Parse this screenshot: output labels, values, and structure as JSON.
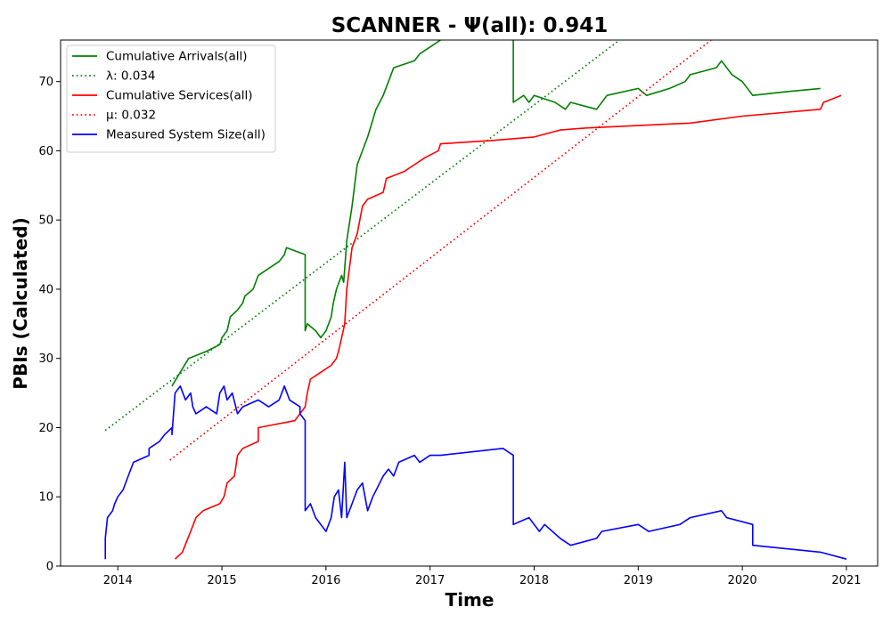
{
  "chart_data": {
    "type": "line",
    "title": "SCANNER -  Ψ(all): 0.941",
    "xlabel": "Time",
    "ylabel": "PBIs (Calculated)",
    "xlim": [
      2013.45,
      2021.3
    ],
    "ylim": [
      0,
      76
    ],
    "x_ticks": [
      2014,
      2015,
      2016,
      2017,
      2018,
      2019,
      2020,
      2021
    ],
    "y_ticks": [
      0,
      10,
      20,
      30,
      40,
      50,
      60,
      70
    ],
    "grid": false,
    "legend_position": "top-left",
    "series": [
      {
        "name": "Cumulative Arrivals(all)",
        "color": "#008000",
        "style": "solid",
        "points": [
          [
            2014.52,
            26
          ],
          [
            2014.6,
            28
          ],
          [
            2014.68,
            30
          ],
          [
            2014.85,
            31
          ],
          [
            2014.98,
            32
          ],
          [
            2015.0,
            33
          ],
          [
            2015.05,
            34
          ],
          [
            2015.08,
            36
          ],
          [
            2015.15,
            37
          ],
          [
            2015.2,
            38
          ],
          [
            2015.22,
            39
          ],
          [
            2015.3,
            40
          ],
          [
            2015.35,
            42
          ],
          [
            2015.45,
            43
          ],
          [
            2015.55,
            44
          ],
          [
            2015.6,
            45
          ],
          [
            2015.62,
            46
          ],
          [
            2015.8,
            45
          ],
          [
            2015.8,
            34
          ],
          [
            2015.82,
            35
          ],
          [
            2015.9,
            34
          ],
          [
            2015.95,
            33
          ],
          [
            2016.0,
            34
          ],
          [
            2016.05,
            36
          ],
          [
            2016.07,
            38
          ],
          [
            2016.1,
            40
          ],
          [
            2016.15,
            42
          ],
          [
            2016.17,
            41
          ],
          [
            2016.2,
            47
          ],
          [
            2016.25,
            52
          ],
          [
            2016.3,
            58
          ],
          [
            2016.35,
            60
          ],
          [
            2016.4,
            62
          ],
          [
            2016.48,
            66
          ],
          [
            2016.55,
            68
          ],
          [
            2016.6,
            70
          ],
          [
            2016.65,
            72
          ],
          [
            2016.85,
            73
          ],
          [
            2016.9,
            74
          ],
          [
            2017.0,
            75
          ],
          [
            2017.1,
            76
          ]
        ]
      },
      {
        "name": "Cumulative Arrivals(all) (cont.)",
        "color": "#008000",
        "style": "solid",
        "points": [
          [
            2017.8,
            76
          ],
          [
            2017.8,
            67
          ],
          [
            2017.9,
            68
          ],
          [
            2017.95,
            67
          ],
          [
            2018.0,
            68
          ],
          [
            2018.2,
            67
          ],
          [
            2018.3,
            66
          ],
          [
            2018.35,
            67
          ],
          [
            2018.6,
            66
          ],
          [
            2018.65,
            67
          ],
          [
            2018.7,
            68
          ],
          [
            2019.0,
            69
          ],
          [
            2019.08,
            68
          ],
          [
            2019.3,
            69
          ],
          [
            2019.45,
            70
          ],
          [
            2019.5,
            71
          ],
          [
            2019.75,
            72
          ],
          [
            2019.8,
            73
          ],
          [
            2019.85,
            72
          ],
          [
            2019.9,
            71
          ],
          [
            2020.0,
            70
          ],
          [
            2020.1,
            68
          ],
          [
            2020.4,
            68.5
          ],
          [
            2020.75,
            69
          ]
        ]
      },
      {
        "name": "λ: 0.034",
        "color": "#008000",
        "style": "dotted",
        "points": [
          [
            2013.88,
            19.6
          ],
          [
            2018.82,
            76
          ]
        ]
      },
      {
        "name": "Cumulative Services(all)",
        "color": "#ff0000",
        "style": "solid",
        "points": [
          [
            2014.55,
            1
          ],
          [
            2014.62,
            2
          ],
          [
            2014.7,
            5
          ],
          [
            2014.75,
            7
          ],
          [
            2014.82,
            8
          ],
          [
            2014.98,
            9
          ],
          [
            2015.02,
            10
          ],
          [
            2015.05,
            12
          ],
          [
            2015.12,
            13
          ],
          [
            2015.15,
            16
          ],
          [
            2015.2,
            17
          ],
          [
            2015.35,
            18
          ],
          [
            2015.35,
            20
          ],
          [
            2015.7,
            21
          ],
          [
            2015.75,
            22
          ],
          [
            2015.8,
            23
          ],
          [
            2015.82,
            25
          ],
          [
            2015.85,
            27
          ],
          [
            2015.95,
            28
          ],
          [
            2016.05,
            29
          ],
          [
            2016.1,
            30
          ],
          [
            2016.12,
            31
          ],
          [
            2016.15,
            33
          ],
          [
            2016.18,
            35
          ],
          [
            2016.2,
            40
          ],
          [
            2016.25,
            46
          ],
          [
            2016.3,
            48
          ],
          [
            2016.35,
            52
          ],
          [
            2016.4,
            53
          ],
          [
            2016.55,
            54
          ],
          [
            2016.58,
            56
          ],
          [
            2016.75,
            57
          ],
          [
            2016.85,
            58
          ],
          [
            2016.95,
            59
          ],
          [
            2017.08,
            60
          ],
          [
            2017.1,
            61
          ],
          [
            2017.6,
            61.5
          ],
          [
            2018.0,
            62
          ],
          [
            2018.25,
            63
          ],
          [
            2018.5,
            63.3
          ],
          [
            2019.5,
            64
          ],
          [
            2020.0,
            65
          ],
          [
            2020.75,
            66
          ],
          [
            2020.78,
            67
          ],
          [
            2020.95,
            68
          ]
        ]
      },
      {
        "name": "μ: 0.032",
        "color": "#ff0000",
        "style": "dotted",
        "points": [
          [
            2014.5,
            15.3
          ],
          [
            2019.7,
            76
          ]
        ]
      },
      {
        "name": "Measured System Size(all)",
        "color": "#0000ff",
        "style": "solid",
        "points": [
          [
            2013.88,
            1
          ],
          [
            2013.88,
            4
          ],
          [
            2013.9,
            7
          ],
          [
            2013.95,
            8
          ],
          [
            2013.97,
            9
          ],
          [
            2014.0,
            10
          ],
          [
            2014.05,
            11
          ],
          [
            2014.1,
            13
          ],
          [
            2014.15,
            15
          ],
          [
            2014.3,
            16
          ],
          [
            2014.3,
            17
          ],
          [
            2014.4,
            18
          ],
          [
            2014.45,
            19
          ],
          [
            2014.52,
            20
          ],
          [
            2014.52,
            19
          ],
          [
            2014.55,
            25
          ],
          [
            2014.6,
            26
          ],
          [
            2014.65,
            24
          ],
          [
            2014.7,
            25
          ],
          [
            2014.72,
            23
          ],
          [
            2014.75,
            22
          ],
          [
            2014.85,
            23
          ],
          [
            2014.95,
            22
          ],
          [
            2014.98,
            25
          ],
          [
            2015.02,
            26
          ],
          [
            2015.05,
            24
          ],
          [
            2015.1,
            25
          ],
          [
            2015.15,
            22
          ],
          [
            2015.2,
            23
          ],
          [
            2015.35,
            24
          ],
          [
            2015.45,
            23
          ],
          [
            2015.55,
            24
          ],
          [
            2015.6,
            26
          ],
          [
            2015.65,
            24
          ],
          [
            2015.75,
            23
          ],
          [
            2015.75,
            22
          ],
          [
            2015.8,
            21
          ],
          [
            2015.8,
            8
          ],
          [
            2015.85,
            9
          ],
          [
            2015.9,
            7
          ],
          [
            2015.95,
            6
          ],
          [
            2016.0,
            5
          ],
          [
            2016.05,
            7
          ],
          [
            2016.08,
            10
          ],
          [
            2016.12,
            11
          ],
          [
            2016.15,
            7
          ],
          [
            2016.18,
            15
          ],
          [
            2016.2,
            7
          ],
          [
            2016.25,
            9
          ],
          [
            2016.3,
            11
          ],
          [
            2016.35,
            12
          ],
          [
            2016.4,
            8
          ],
          [
            2016.45,
            10
          ],
          [
            2016.55,
            13
          ],
          [
            2016.6,
            14
          ],
          [
            2016.65,
            13
          ],
          [
            2016.7,
            15
          ],
          [
            2016.85,
            16
          ],
          [
            2016.9,
            15
          ],
          [
            2017.0,
            16
          ],
          [
            2017.1,
            16
          ],
          [
            2017.7,
            17
          ],
          [
            2017.8,
            16
          ],
          [
            2017.8,
            6
          ],
          [
            2017.95,
            7
          ],
          [
            2018.0,
            6
          ],
          [
            2018.05,
            5
          ],
          [
            2018.1,
            6
          ],
          [
            2018.25,
            4
          ],
          [
            2018.35,
            3
          ],
          [
            2018.6,
            4
          ],
          [
            2018.65,
            5
          ],
          [
            2019.0,
            6
          ],
          [
            2019.1,
            5
          ],
          [
            2019.4,
            6
          ],
          [
            2019.5,
            7
          ],
          [
            2019.8,
            8
          ],
          [
            2019.85,
            7
          ],
          [
            2020.1,
            6
          ],
          [
            2020.1,
            3
          ],
          [
            2020.75,
            2
          ],
          [
            2021.0,
            1
          ]
        ]
      }
    ],
    "legend": [
      {
        "label": "Cumulative Arrivals(all)",
        "color": "#008000",
        "style": "solid"
      },
      {
        "label": "λ: 0.034",
        "color": "#008000",
        "style": "dotted"
      },
      {
        "label": "Cumulative Services(all)",
        "color": "#ff0000",
        "style": "solid"
      },
      {
        "label": "μ: 0.032",
        "color": "#ff0000",
        "style": "dotted"
      },
      {
        "label": "Measured System Size(all)",
        "color": "#0000ff",
        "style": "solid"
      }
    ]
  }
}
